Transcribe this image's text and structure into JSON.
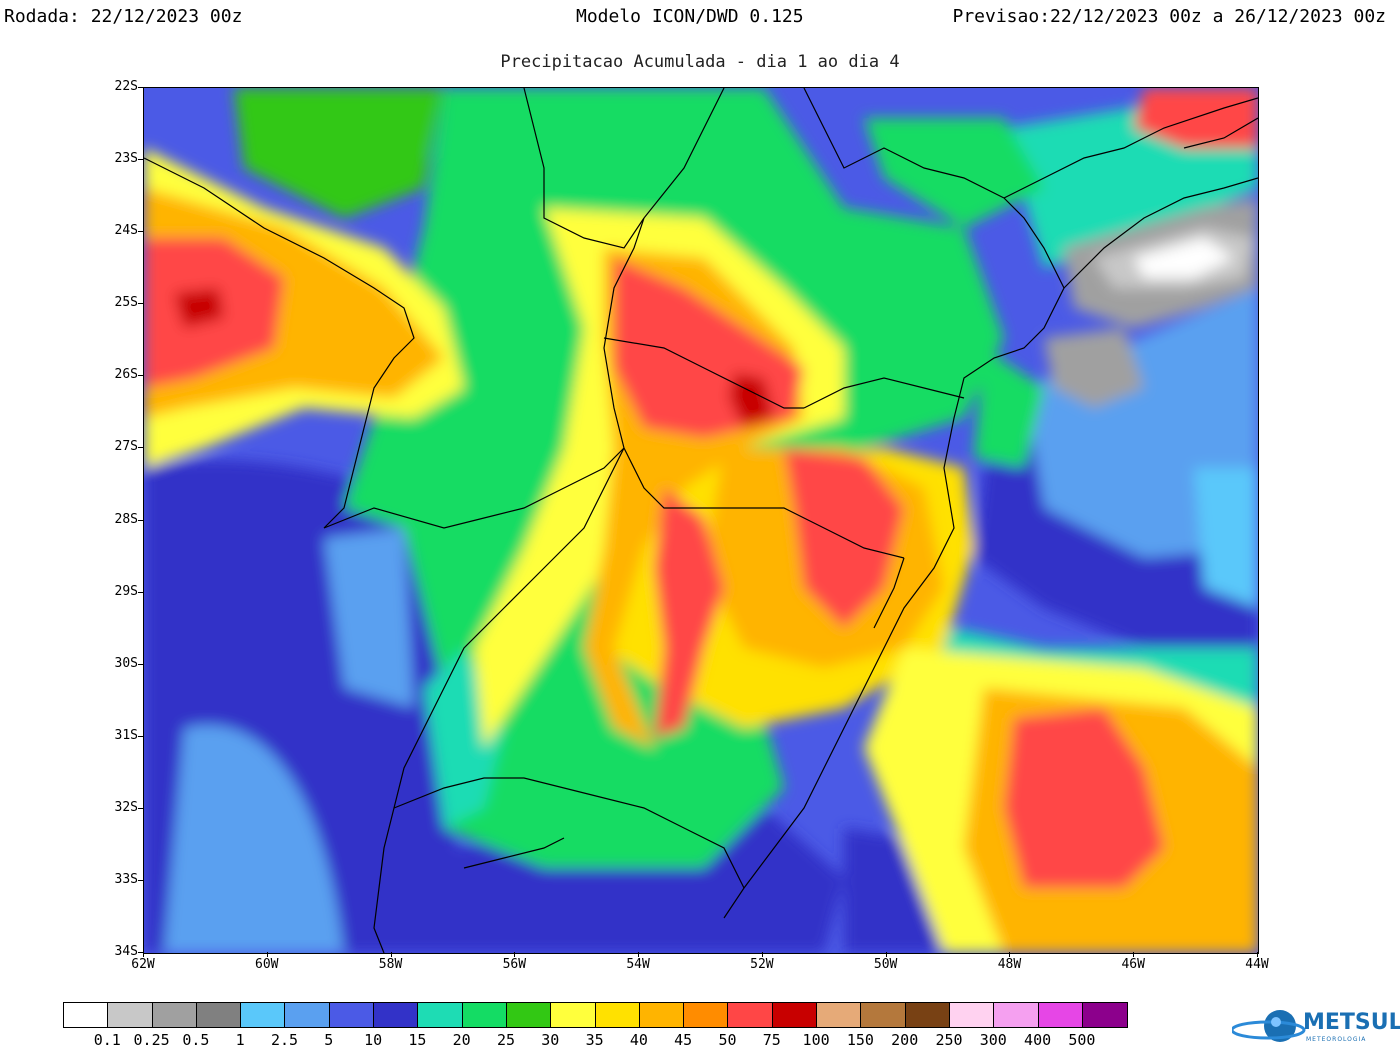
{
  "header": {
    "rodada_label": "Rodada:",
    "rodada_value": "22/12/2023 00z",
    "model": "Modelo ICON/DWD 0.125",
    "previsao_label": "Previsao:",
    "previsao_value": "22/12/2023 00z a 26/12/2023 00z"
  },
  "subtitle": "Precipitacao Acumulada - dia 1 ao dia 4",
  "axes": {
    "lat_labels": [
      "22S",
      "23S",
      "24S",
      "25S",
      "26S",
      "27S",
      "28S",
      "29S",
      "30S",
      "31S",
      "32S",
      "33S",
      "34S"
    ],
    "lon_labels": [
      "62W",
      "60W",
      "58W",
      "56W",
      "54W",
      "52W",
      "50W",
      "48W",
      "46W",
      "44W"
    ]
  },
  "colorbar": {
    "colors": [
      "#ffffff",
      "#c8c8c8",
      "#a0a0a0",
      "#808080",
      "#5ac8fa",
      "#5aa0f0",
      "#4b5ae6",
      "#3232c8",
      "#1edcb4",
      "#14dc64",
      "#32c814",
      "#ffff3c",
      "#ffe100",
      "#ffb400",
      "#ff8c00",
      "#ff4646",
      "#c80000",
      "#e6aa78",
      "#b4783c",
      "#784114",
      "#ffd2f0",
      "#f5a0f0",
      "#e646e6",
      "#8c008c"
    ],
    "labels": [
      "0.1",
      "0.25",
      "0.5",
      "1",
      "2.5",
      "5",
      "10",
      "15",
      "20",
      "25",
      "30",
      "35",
      "40",
      "45",
      "50",
      "75",
      "100",
      "150",
      "200",
      "250",
      "300",
      "400",
      "500"
    ]
  },
  "logo": {
    "text": "METSUL",
    "sub": "METEOROLOGIA"
  }
}
